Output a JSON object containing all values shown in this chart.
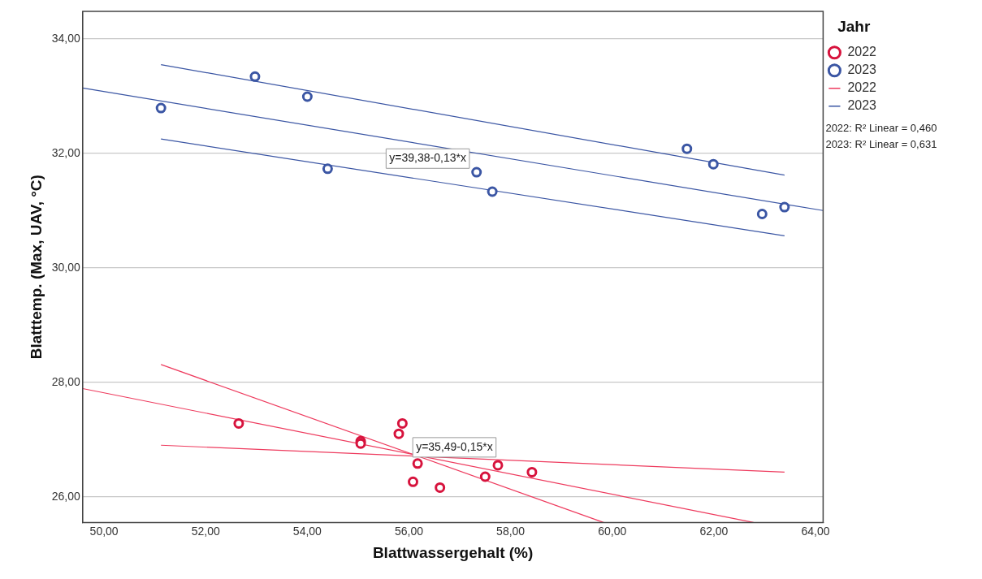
{
  "chart_data": {
    "type": "scatter",
    "xlabel": "Blattwassergehalt (%)",
    "ylabel": "Blatttemp. (Max, UAV, °C)",
    "legend_title": "Jahr",
    "legend": "right",
    "grid": "y",
    "marker": "circle",
    "xlim": [
      49.58,
      64.15
    ],
    "ylim": [
      25.55,
      34.48
    ],
    "xticks": [
      {
        "value": 50,
        "label": "50,00"
      },
      {
        "value": 52,
        "label": "52,00"
      },
      {
        "value": 54,
        "label": "54,00"
      },
      {
        "value": 56,
        "label": "56,00"
      },
      {
        "value": 58,
        "label": "58,00"
      },
      {
        "value": 60,
        "label": "60,00"
      },
      {
        "value": 62,
        "label": "62,00"
      },
      {
        "value": 64,
        "label": "64,00"
      }
    ],
    "yticks": [
      {
        "value": 26,
        "label": "26,00"
      },
      {
        "value": 28,
        "label": "28,00"
      },
      {
        "value": 30,
        "label": "30,00"
      },
      {
        "value": 32,
        "label": "32,00"
      },
      {
        "value": 34,
        "label": "34,00"
      }
    ],
    "series": [
      {
        "name": "2022",
        "color": "#d7133d",
        "x": [
          52.65,
          55.05,
          55.05,
          55.87,
          55.8,
          56.17,
          56.08,
          56.61,
          57.5,
          57.75,
          58.42
        ],
        "values": [
          27.28,
          26.97,
          26.93,
          27.28,
          27.1,
          26.58,
          26.26,
          26.16,
          26.35,
          26.55,
          26.43
        ]
      },
      {
        "name": "2023",
        "color": "#3b56a4",
        "x": [
          51.12,
          52.97,
          54.0,
          54.4,
          57.33,
          57.64,
          61.47,
          61.99,
          62.95,
          63.39
        ],
        "values": [
          32.79,
          33.34,
          32.99,
          31.73,
          31.67,
          31.33,
          32.08,
          31.81,
          30.94,
          31.06
        ]
      },
      {
        "name": "2022",
        "type": "line",
        "marker": "none",
        "color": "#ee3b5e",
        "x": [
          49.58,
          62.78
        ],
        "values": [
          27.89,
          25.55
        ]
      },
      {
        "name": "2023",
        "type": "line",
        "marker": "none",
        "color": "#3b56a4",
        "x": [
          49.58,
          64.15
        ],
        "values": [
          33.14,
          31.0
        ]
      },
      {
        "type": "line",
        "marker": "none",
        "color": "#ee3b5e",
        "x": [
          51.12,
          59.83
        ],
        "values": [
          28.31,
          25.55
        ]
      },
      {
        "type": "line",
        "marker": "none",
        "color": "#ee3b5e",
        "x": [
          51.12,
          63.39
        ],
        "values": [
          26.9,
          26.43
        ]
      },
      {
        "type": "line",
        "marker": "none",
        "color": "#3b56a4",
        "x": [
          51.12,
          63.39
        ],
        "values": [
          33.55,
          31.62
        ]
      },
      {
        "type": "line",
        "marker": "none",
        "color": "#3b56a4",
        "x": [
          51.12,
          63.39
        ],
        "values": [
          32.25,
          30.56
        ]
      }
    ],
    "annotations": [
      "y=39,38-0,13*x",
      "y=35,49-0,15*x",
      "2022: R² Linear = 0,460",
      "2023: R² Linear = 0,631"
    ]
  }
}
